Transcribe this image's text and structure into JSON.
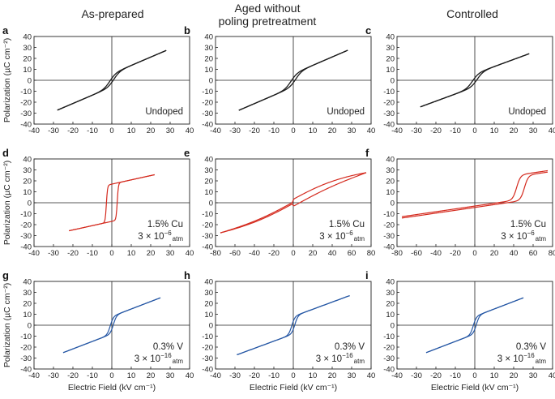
{
  "column_titles": [
    "As-prepared",
    "Aged without\npoling pretreatment",
    "Controlled"
  ],
  "ylabel": "Polarization (µC cm⁻²)",
  "xlabel": "Electric Field (kV cm⁻¹)",
  "colors": {
    "Undoped": "#1a1a1a",
    "1.5% Cu": "#d42a1e",
    "0.3% V": "#2456a4"
  },
  "chart_data": [
    {
      "type": "line",
      "panel": "a",
      "row_label": "Undoped",
      "column": "As-prepared",
      "xlim": [
        -40,
        40
      ],
      "xticks": [
        -40,
        -30,
        -20,
        -10,
        0,
        10,
        20,
        30,
        40
      ],
      "ylim": [
        -40,
        40
      ],
      "yticks": [
        -40,
        -30,
        -20,
        -10,
        0,
        10,
        20,
        30,
        40
      ],
      "loop": {
        "Emax": 28,
        "Pmax": 26.5,
        "Pr": 6,
        "Ec": 1.0,
        "w": 3.2,
        "k": 1.7
      },
      "annotation": [
        "Undoped"
      ]
    },
    {
      "type": "line",
      "panel": "b",
      "row_label": "Undoped",
      "column": "Aged without poling pretreatment",
      "xlim": [
        -40,
        40
      ],
      "xticks": [
        -40,
        -30,
        -20,
        -10,
        0,
        10,
        20,
        30,
        40
      ],
      "ylim": [
        -40,
        40
      ],
      "yticks": [
        -40,
        -30,
        -20,
        -10,
        0,
        10,
        20,
        30,
        40
      ],
      "loop": {
        "Emax": 28,
        "Pmax": 26.5,
        "Pr": 6,
        "Ec": 1.2,
        "w": 3.2,
        "k": 1.7
      },
      "annotation": [
        "Undoped"
      ]
    },
    {
      "type": "line",
      "panel": "c",
      "row_label": "Undoped",
      "column": "Controlled",
      "xlim": [
        -40,
        40
      ],
      "xticks": [
        -40,
        -30,
        -20,
        -10,
        0,
        10,
        20,
        30,
        40
      ],
      "ylim": [
        -40,
        40
      ],
      "yticks": [
        -40,
        -30,
        -20,
        -10,
        0,
        10,
        20,
        30,
        40
      ],
      "loop": {
        "Emax": 28,
        "Pmax": 23.5,
        "Pr": 6,
        "Ec": 1.2,
        "w": 3.2,
        "k": 1.7
      },
      "annotation": [
        "Undoped"
      ]
    },
    {
      "type": "line",
      "panel": "d",
      "row_label": "1.5% Cu",
      "column": "As-prepared",
      "xlim": [
        -40,
        40
      ],
      "xticks": [
        -40,
        -30,
        -20,
        -10,
        0,
        10,
        20,
        30,
        40
      ],
      "ylim": [
        -40,
        40
      ],
      "yticks": [
        -40,
        -30,
        -20,
        -10,
        0,
        10,
        20,
        30,
        40
      ],
      "loop": {
        "Emax": 22,
        "Pmax": 24.5,
        "Pr": 17,
        "Ec": 2.8,
        "w": 0.6,
        "k": 1.0
      },
      "annotation": [
        "1.5% Cu",
        "3 × 10",
        "−6",
        "atm"
      ]
    },
    {
      "type": "line",
      "panel": "e",
      "row_label": "1.5% Cu",
      "column": "Aged without poling pretreatment",
      "xlim": [
        -80,
        80
      ],
      "xticks": [
        -80,
        -60,
        -40,
        -20,
        0,
        20,
        40,
        60,
        80
      ],
      "ylim": [
        -40,
        40
      ],
      "yticks": [
        -40,
        -30,
        -20,
        -10,
        0,
        10,
        20,
        30,
        40
      ],
      "loop": {
        "Emax": 75,
        "Pmax": 27.5,
        "shape": "pinched",
        "offset": 0,
        "g1": 48,
        "g2": 5,
        "a": 8,
        "b": 0.12,
        "d": 3.2
      },
      "annotation": [
        "1.5% Cu",
        "3 × 10",
        "−6",
        "atm"
      ]
    },
    {
      "type": "line",
      "panel": "f",
      "row_label": "1.5% Cu",
      "column": "Controlled",
      "xlim": [
        -80,
        80
      ],
      "xticks": [
        -80,
        -60,
        -40,
        -20,
        0,
        20,
        40,
        60,
        80
      ],
      "ylim": [
        -40,
        40
      ],
      "yticks": [
        -40,
        -30,
        -20,
        -10,
        0,
        10,
        20,
        30,
        40
      ],
      "loop": {
        "Emax": 75,
        "Pmax": 28,
        "shape": "shifted",
        "E0": 47,
        "Ec": 4,
        "Pa": 21,
        "w": 4,
        "k": 0.12,
        "Pn": -14
      },
      "annotation": [
        "1.5% Cu",
        "3 × 10",
        "−6",
        "atm"
      ]
    },
    {
      "type": "line",
      "panel": "g",
      "row_label": "0.3% V",
      "column": "As-prepared",
      "xlim": [
        -40,
        40
      ],
      "xticks": [
        -40,
        -30,
        -20,
        -10,
        0,
        10,
        20,
        30,
        40
      ],
      "ylim": [
        -40,
        40
      ],
      "yticks": [
        -40,
        -30,
        -20,
        -10,
        0,
        10,
        20,
        30,
        40
      ],
      "loop": {
        "Emax": 25,
        "Pmax": 24.5,
        "Pr": 8,
        "Ec": 0.8,
        "w": 1.6,
        "k": 1.5
      },
      "annotation": [
        "0.3% V",
        "3 × 10",
        "−16",
        "atm"
      ]
    },
    {
      "type": "line",
      "panel": "h",
      "row_label": "0.3% V",
      "column": "Aged without poling pretreatment",
      "xlim": [
        -40,
        40
      ],
      "xticks": [
        -40,
        -30,
        -20,
        -10,
        0,
        10,
        20,
        30,
        40
      ],
      "ylim": [
        -40,
        40
      ],
      "yticks": [
        -40,
        -30,
        -20,
        -10,
        0,
        10,
        20,
        30,
        40
      ],
      "loop": {
        "Emax": 29,
        "Pmax": 26.5,
        "Pr": 8,
        "Ec": 0.8,
        "w": 1.6,
        "k": 1.5
      },
      "annotation": [
        "0.3% V",
        "3 × 10",
        "−16",
        "atm"
      ]
    },
    {
      "type": "line",
      "panel": "i",
      "row_label": "0.3% V",
      "column": "Controlled",
      "xlim": [
        -40,
        40
      ],
      "xticks": [
        -40,
        -30,
        -20,
        -10,
        0,
        10,
        20,
        30,
        40
      ],
      "ylim": [
        -40,
        40
      ],
      "yticks": [
        -40,
        -30,
        -20,
        -10,
        0,
        10,
        20,
        30,
        40
      ],
      "loop": {
        "Emax": 25,
        "Pmax": 24.5,
        "Pr": 8,
        "Ec": 0.8,
        "w": 1.6,
        "k": 1.5
      },
      "annotation": [
        "0.3% V",
        "3 × 10",
        "−16",
        "atm"
      ]
    }
  ]
}
